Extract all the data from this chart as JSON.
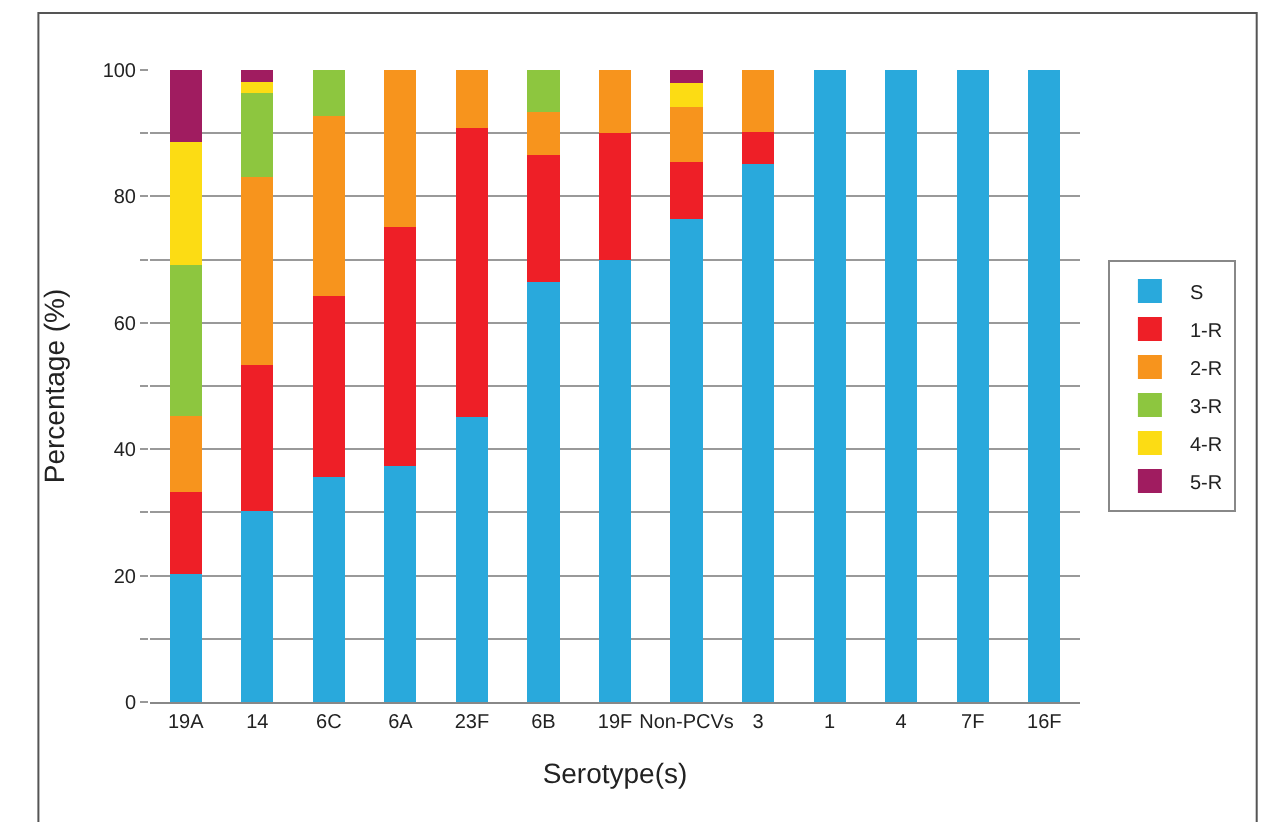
{
  "chart_data": {
    "type": "bar",
    "stacked": true,
    "xlabel": "Serotype(s)",
    "ylabel": "Percentage (%)",
    "categories": [
      "19A",
      "14",
      "6C",
      "6A",
      "23F",
      "6B",
      "19F",
      "Non-PCVs",
      "3",
      "1",
      "4",
      "7F",
      "16F"
    ],
    "series": [
      {
        "name": "S",
        "color": "#29a9dc",
        "values": [
          20.3,
          30.2,
          35.6,
          37.3,
          45.1,
          66.5,
          69.9,
          76.4,
          85.2,
          100,
          100,
          100,
          100
        ]
      },
      {
        "name": "1-R",
        "color": "#ee1f27",
        "values": [
          12.9,
          23.2,
          28.6,
          37.8,
          45.7,
          20.1,
          20.2,
          9.1,
          5,
          0,
          0,
          0,
          0
        ]
      },
      {
        "name": "2-R",
        "color": "#f7941d",
        "values": [
          12,
          29.7,
          28.5,
          24.9,
          9.2,
          6.7,
          9.9,
          8.6,
          9.8,
          0,
          0,
          0,
          0
        ]
      },
      {
        "name": "3-R",
        "color": "#8dc63f",
        "values": [
          24,
          13.2,
          7.3,
          0,
          0,
          6.7,
          0,
          0,
          0,
          0,
          0,
          0,
          0
        ]
      },
      {
        "name": "4-R",
        "color": "#fcdc14",
        "values": [
          19.4,
          1.8,
          0,
          0,
          0,
          0,
          0,
          3.8,
          0,
          0,
          0,
          0,
          0
        ]
      },
      {
        "name": "5-R",
        "color": "#a01c60",
        "values": [
          11.4,
          1.9,
          0,
          0,
          0,
          0,
          0,
          2.1,
          0,
          0,
          0,
          0,
          0
        ]
      }
    ],
    "ylim": [
      0,
      100
    ],
    "yticks": [
      0,
      {
        "value": 10,
        "label": null
      },
      20,
      {
        "value": 30,
        "label": null
      },
      40,
      {
        "value": 50,
        "label": null
      },
      60,
      {
        "value": 70,
        "label": null
      },
      80,
      {
        "value": 90,
        "label": null
      },
      100
    ],
    "grid": "y",
    "legend": "right"
  }
}
